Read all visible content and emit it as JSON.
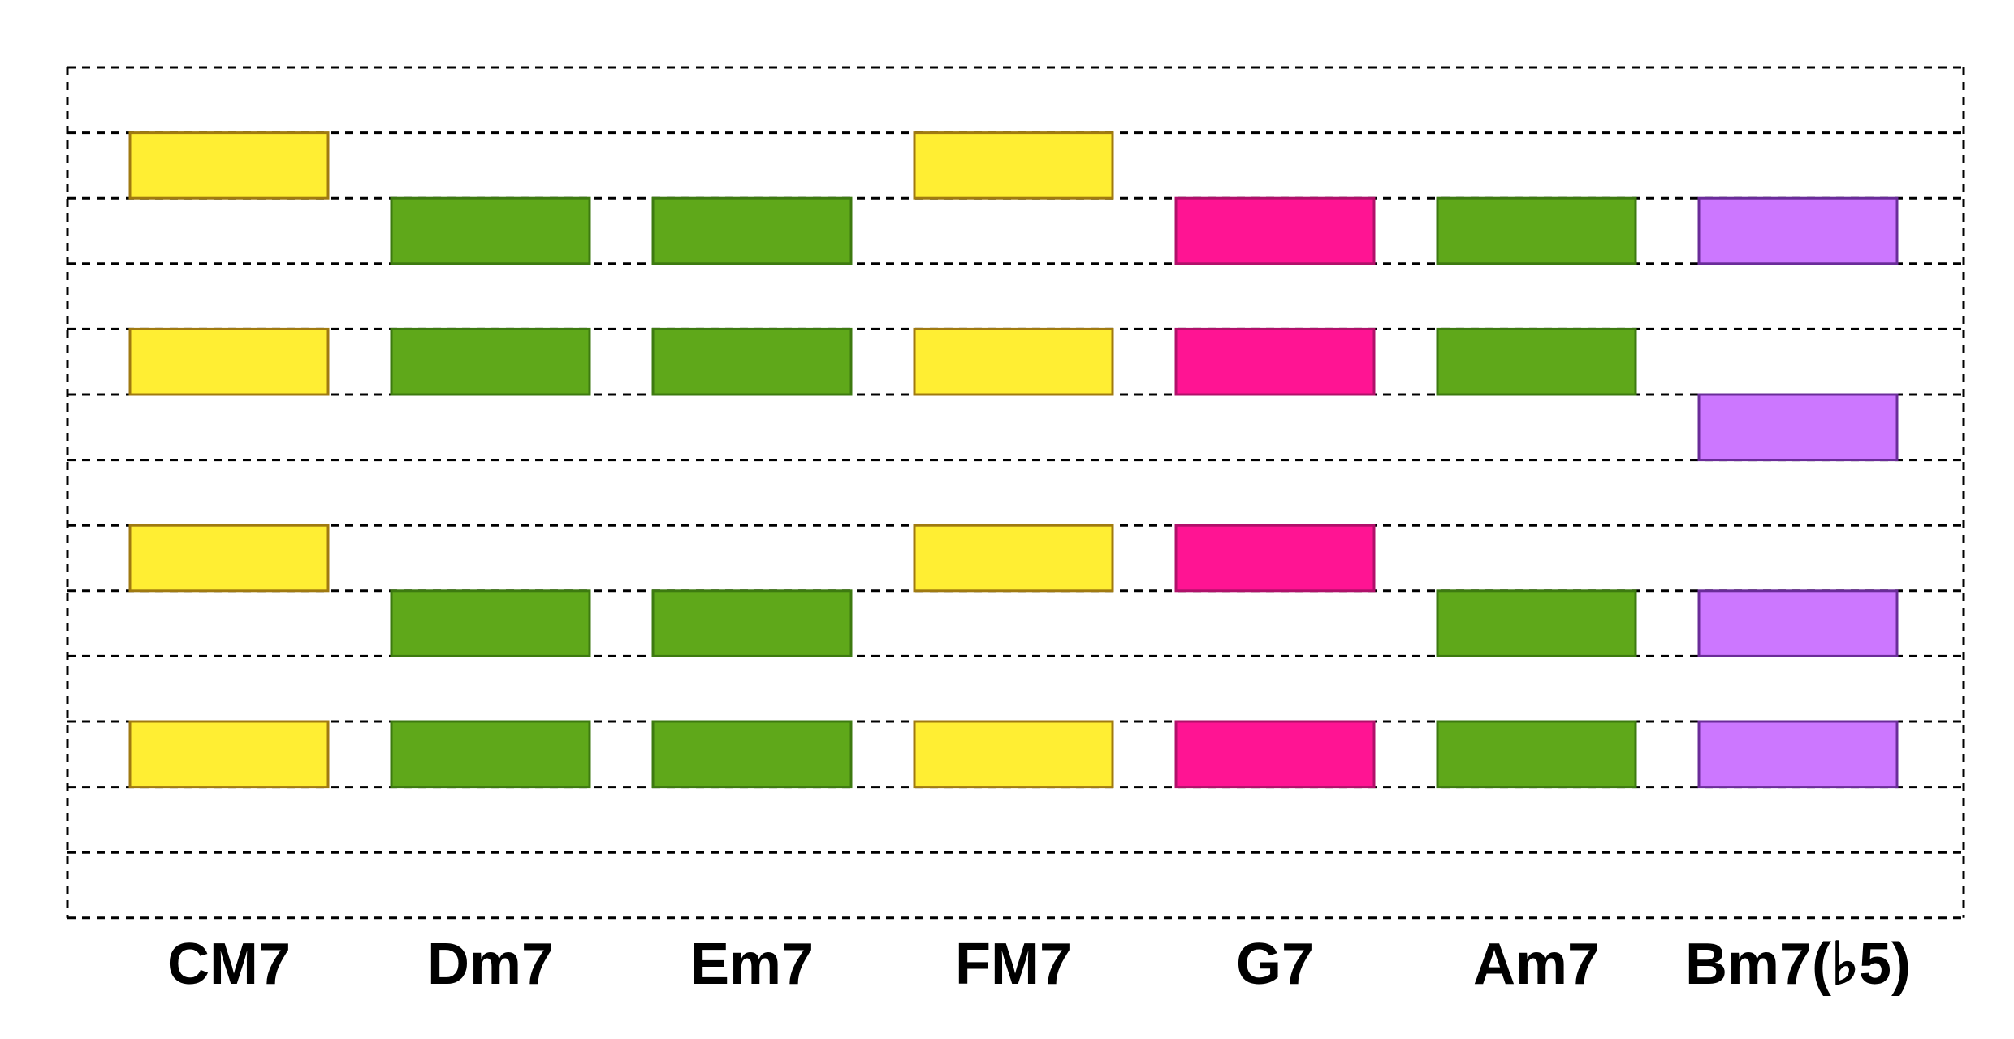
{
  "colors": {
    "tonic": "#ffee33",
    "tonic_stroke": "#a07a10",
    "subdominant": "#5fa81a",
    "subdominant_stroke": "#3d7a10",
    "dominant": "#ff1493",
    "dominant_stroke": "#b0106a",
    "half_diminished": "#cc77ff",
    "half_diminished_stroke": "#6a2c99",
    "grid_line": "#000000"
  },
  "row_count": 13,
  "chords": [
    {
      "label": "CM7",
      "color_key": "tonic",
      "rows": [
        1,
        4,
        7,
        10
      ]
    },
    {
      "label": "Dm7",
      "color_key": "subdominant",
      "rows": [
        2,
        4,
        8,
        10
      ]
    },
    {
      "label": "Em7",
      "color_key": "subdominant",
      "rows": [
        2,
        4,
        8,
        10
      ]
    },
    {
      "label": "FM7",
      "color_key": "tonic",
      "rows": [
        1,
        4,
        7,
        10
      ]
    },
    {
      "label": "G7",
      "color_key": "dominant",
      "rows": [
        2,
        4,
        7,
        10
      ]
    },
    {
      "label": "Am7",
      "color_key": "subdominant",
      "rows": [
        2,
        4,
        8,
        10
      ]
    },
    {
      "label": "Bm7(♭5)",
      "color_key": "half_diminished",
      "rows": [
        2,
        5,
        8,
        10
      ]
    }
  ]
}
